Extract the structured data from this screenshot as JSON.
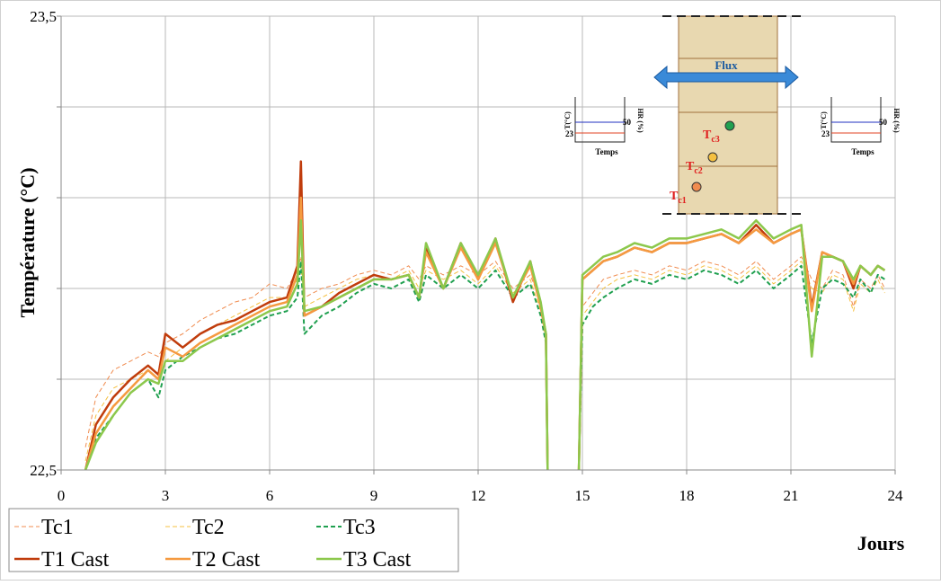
{
  "chart_data": {
    "type": "line",
    "y_label": "Température (°C)",
    "x_label": "Jours",
    "xlim": [
      0,
      24
    ],
    "xticks": [
      0,
      3,
      6,
      9,
      12,
      15,
      18,
      21,
      24
    ],
    "ylim": [
      22.5,
      23.5
    ],
    "yticks": [
      {
        "value": 22.5,
        "label": "22,5"
      },
      {
        "value": 22.7,
        "label": null
      },
      {
        "value": 22.9,
        "label": null
      },
      {
        "value": 23.1,
        "label": null
      },
      {
        "value": 23.3,
        "label": null
      },
      {
        "value": 23.5,
        "label": "23,5"
      }
    ],
    "grid": true,
    "legend": "bottom-left",
    "x": [
      0.7,
      1.0,
      1.5,
      2.0,
      2.5,
      2.8,
      3.0,
      3.5,
      4.0,
      4.5,
      5.0,
      5.5,
      6.0,
      6.5,
      6.8,
      6.9,
      7.0,
      7.5,
      8.0,
      8.5,
      9.0,
      9.5,
      10.0,
      10.3,
      10.5,
      11.0,
      11.5,
      12.0,
      12.5,
      13.0,
      13.5,
      13.8,
      13.95,
      14.0,
      14.5,
      14.9,
      15.0,
      15.3,
      15.6,
      16.0,
      16.5,
      17.0,
      17.5,
      18.0,
      18.5,
      19.0,
      19.5,
      20.0,
      20.5,
      21.0,
      21.3,
      21.6,
      21.9,
      22.2,
      22.5,
      22.8,
      23.0,
      23.3,
      23.5,
      23.7
    ],
    "series": [
      {
        "name": "Tc1",
        "color": "#f08c50",
        "dash": true,
        "width": 1,
        "values": [
          22.55,
          22.66,
          22.72,
          22.74,
          22.76,
          22.75,
          22.78,
          22.8,
          22.83,
          22.85,
          22.87,
          22.88,
          22.91,
          22.9,
          22.94,
          22.97,
          22.88,
          22.9,
          22.91,
          22.93,
          22.94,
          22.93,
          22.95,
          22.92,
          22.95,
          22.93,
          22.95,
          22.93,
          22.96,
          22.9,
          22.93,
          22.87,
          22.8,
          22.5,
          null,
          22.5,
          22.86,
          22.89,
          22.92,
          22.93,
          22.94,
          22.93,
          22.95,
          22.94,
          22.96,
          22.95,
          22.93,
          22.96,
          22.92,
          22.95,
          22.97,
          22.92,
          22.9,
          22.94,
          22.93,
          22.86,
          22.92,
          22.9,
          22.93,
          22.9
        ]
      },
      {
        "name": "Tc2",
        "color": "#f5c040",
        "dash": true,
        "width": 1,
        "values": [
          22.52,
          22.62,
          22.68,
          22.7,
          22.72,
          22.7,
          22.74,
          22.77,
          22.8,
          22.82,
          22.84,
          22.86,
          22.88,
          22.88,
          22.92,
          22.95,
          22.86,
          22.88,
          22.9,
          22.92,
          22.93,
          22.92,
          22.94,
          22.9,
          22.94,
          22.92,
          22.94,
          22.91,
          22.95,
          22.89,
          22.92,
          22.85,
          22.78,
          22.5,
          null,
          22.5,
          22.84,
          22.87,
          22.9,
          22.92,
          22.93,
          22.92,
          22.94,
          22.93,
          22.95,
          22.94,
          22.92,
          22.95,
          22.91,
          22.94,
          22.96,
          22.9,
          22.89,
          22.93,
          22.92,
          22.85,
          22.91,
          22.89,
          22.92,
          22.89
        ]
      },
      {
        "name": "Tc3",
        "color": "#20a050",
        "dash": true,
        "width": 2,
        "values": [
          22.5,
          22.57,
          22.62,
          22.67,
          22.7,
          22.66,
          22.72,
          22.75,
          22.77,
          22.79,
          22.8,
          22.82,
          22.84,
          22.85,
          22.88,
          22.96,
          22.8,
          22.84,
          22.86,
          22.89,
          22.91,
          22.9,
          22.92,
          22.87,
          22.93,
          22.9,
          22.93,
          22.9,
          22.94,
          22.88,
          22.91,
          22.84,
          22.78,
          22.5,
          null,
          22.5,
          22.82,
          22.86,
          22.88,
          22.9,
          22.92,
          22.91,
          22.93,
          22.92,
          22.94,
          22.93,
          22.91,
          22.94,
          22.9,
          22.93,
          22.95,
          22.78,
          22.9,
          22.92,
          22.91,
          22.88,
          22.92,
          22.89,
          22.93,
          22.92
        ]
      },
      {
        "name": "T1 Cast",
        "color": "#c03c0c",
        "dash": false,
        "width": 2.5,
        "values": [
          22.5,
          22.6,
          22.66,
          22.7,
          22.73,
          22.71,
          22.8,
          22.77,
          22.8,
          22.82,
          22.83,
          22.85,
          22.87,
          22.88,
          22.95,
          23.18,
          22.84,
          22.86,
          22.89,
          22.91,
          22.93,
          22.92,
          22.93,
          22.88,
          22.99,
          22.9,
          23.0,
          22.92,
          23.01,
          22.87,
          22.96,
          22.86,
          22.8,
          22.5,
          null,
          22.5,
          22.92,
          22.94,
          22.96,
          22.97,
          22.99,
          22.98,
          23.0,
          23.0,
          23.01,
          23.02,
          23.0,
          23.04,
          23.0,
          23.02,
          23.03,
          22.86,
          22.98,
          22.97,
          22.96,
          22.9,
          22.95,
          22.93,
          22.95,
          22.94
        ]
      },
      {
        "name": "T2 Cast",
        "color": "#f59a40",
        "dash": false,
        "width": 2.5,
        "values": [
          22.5,
          22.58,
          22.64,
          22.68,
          22.72,
          22.7,
          22.77,
          22.75,
          22.78,
          22.8,
          22.82,
          22.84,
          22.86,
          22.87,
          22.93,
          23.1,
          22.84,
          22.86,
          22.88,
          22.9,
          22.92,
          22.92,
          22.93,
          22.88,
          22.98,
          22.9,
          22.99,
          22.92,
          23.0,
          22.88,
          22.95,
          22.86,
          22.8,
          22.5,
          null,
          22.5,
          22.92,
          22.94,
          22.96,
          22.97,
          22.99,
          22.98,
          23.0,
          23.0,
          23.01,
          23.02,
          23.0,
          23.03,
          23.0,
          23.02,
          23.03,
          22.85,
          22.98,
          22.97,
          22.96,
          22.91,
          22.95,
          22.93,
          22.95,
          22.94
        ]
      },
      {
        "name": "T3 Cast",
        "color": "#8cc84c",
        "dash": false,
        "width": 2.5,
        "values": [
          22.5,
          22.56,
          22.62,
          22.67,
          22.7,
          22.69,
          22.74,
          22.74,
          22.77,
          22.79,
          22.81,
          22.83,
          22.85,
          22.86,
          22.91,
          23.05,
          22.85,
          22.86,
          22.88,
          22.9,
          22.92,
          22.92,
          22.93,
          22.88,
          23.0,
          22.9,
          23.0,
          22.93,
          23.01,
          22.88,
          22.96,
          22.87,
          22.8,
          22.5,
          null,
          22.5,
          22.93,
          22.95,
          22.97,
          22.98,
          23.0,
          22.99,
          23.01,
          23.01,
          23.02,
          23.03,
          23.01,
          23.05,
          23.01,
          23.03,
          23.04,
          22.75,
          22.97,
          22.97,
          22.96,
          22.92,
          22.95,
          22.93,
          22.95,
          22.94
        ]
      }
    ],
    "inset": {
      "flux": "Flux",
      "sensors": [
        {
          "base": "T",
          "sub": "c3"
        },
        {
          "base": "T",
          "sub": "c2"
        },
        {
          "base": "T",
          "sub": "c1"
        }
      ],
      "sensor_colors": [
        "#20a050",
        "#f5c040",
        "#f08c50"
      ],
      "graphs": [
        {
          "y_label": "T(°C)",
          "y2_label": "HR (%)",
          "high": 50,
          "low": 23,
          "x_label": "Temps"
        },
        {
          "y_label": "T(°C)",
          "y2_label": "HR (%)",
          "high": 50,
          "low": 23,
          "x_label": "Temps"
        }
      ]
    }
  }
}
